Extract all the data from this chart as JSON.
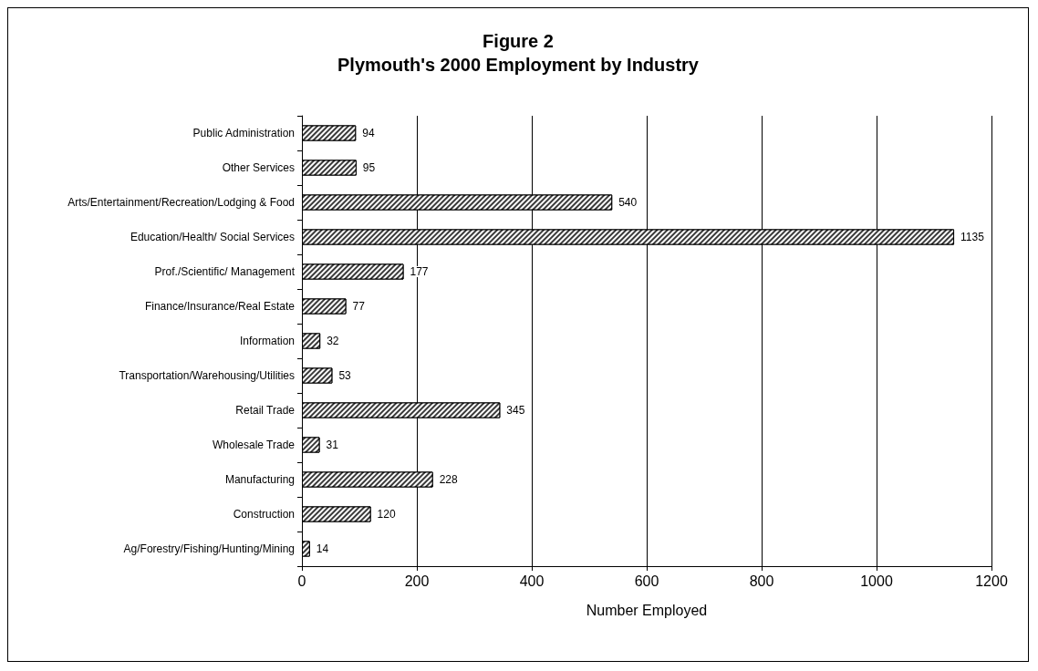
{
  "chart_data": {
    "type": "bar",
    "orientation": "horizontal",
    "title": "Figure 2\nPlymouth's 2000 Employment by Industry",
    "xlabel": "Number Employed",
    "categories": [
      "Public Administration",
      "Other Services",
      "Arts/Entertainment/Recreation/Lodging & Food",
      "Education/Health/ Social Services",
      "Prof./Scientific/ Management",
      "Finance/Insurance/Real Estate",
      "Information",
      "Transportation/Warehousing/Utilities",
      "Retail Trade",
      "Wholesale Trade",
      "Manufacturing",
      "Construction",
      "Ag/Forestry/Fishing/Hunting/Mining"
    ],
    "values": [
      94,
      95,
      540,
      1135,
      177,
      77,
      32,
      53,
      345,
      31,
      228,
      120,
      14
    ],
    "color": "#3a3a3a",
    "xlim": [
      0,
      1200
    ],
    "xticks": [
      0,
      200,
      400,
      600,
      800,
      1000,
      1200
    ],
    "grid": "x",
    "data_labels": true
  }
}
